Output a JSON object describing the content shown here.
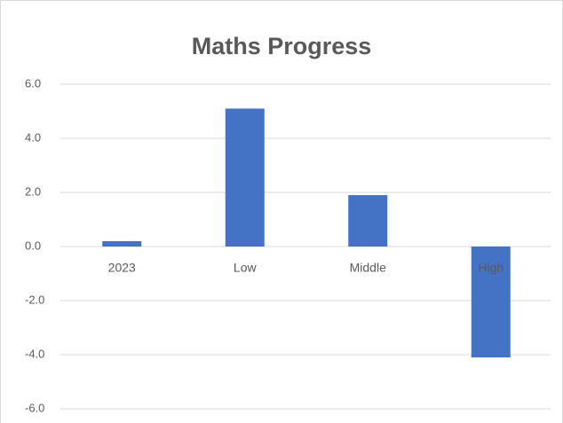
{
  "chart_data": {
    "type": "bar",
    "title": "Maths Progress",
    "categories": [
      "2023",
      "Low",
      "Middle",
      "High"
    ],
    "values": [
      0.2,
      5.1,
      1.9,
      -4.1
    ],
    "color": "#4472c4",
    "ylim": [
      -6,
      6
    ],
    "yticks": [
      {
        "value": -6,
        "label": "-6.0"
      },
      {
        "value": -4,
        "label": "-4.0"
      },
      {
        "value": -2,
        "label": "-2.0"
      },
      {
        "value": 0,
        "label": "0.0"
      },
      {
        "value": 2,
        "label": "2.0"
      },
      {
        "value": 4,
        "label": "4.0"
      },
      {
        "value": 6,
        "label": "6.0"
      }
    ],
    "grid": true
  }
}
